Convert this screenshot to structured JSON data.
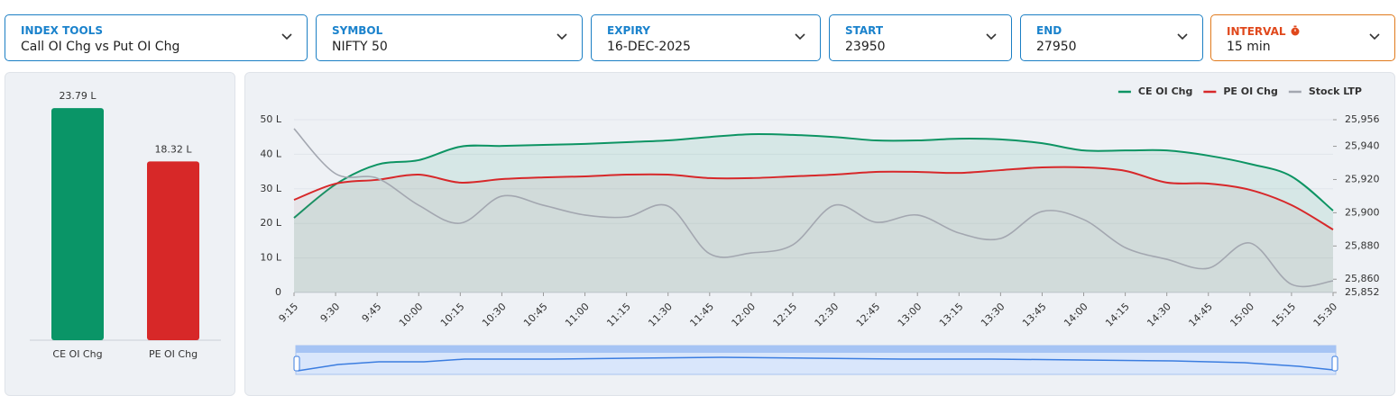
{
  "filters": [
    {
      "label": "INDEX TOOLS",
      "value": "Call OI Chg vs Put OI Chg"
    },
    {
      "label": "SYMBOL",
      "value": "NIFTY 50"
    },
    {
      "label": "EXPIRY",
      "value": "16-DEC-2025"
    },
    {
      "label": "START",
      "value": "23950"
    },
    {
      "label": "END",
      "value": "27950"
    },
    {
      "label": "INTERVAL",
      "value": "15 min"
    }
  ],
  "chart_data": [
    {
      "type": "bar",
      "categories": [
        "CE OI Chg",
        "PE OI Chg"
      ],
      "values": [
        23.79,
        18.32
      ],
      "value_labels": [
        "23.79 L",
        "18.32 L"
      ],
      "colors": [
        "#0a9567",
        "#d72828"
      ],
      "ylim": [
        0,
        25
      ]
    },
    {
      "type": "line",
      "categories": [
        "9:15",
        "9:30",
        "9:45",
        "10:00",
        "10:15",
        "10:30",
        "10:45",
        "11:00",
        "11:15",
        "11:30",
        "11:45",
        "12:00",
        "12:15",
        "12:30",
        "12:45",
        "13:00",
        "13:15",
        "13:30",
        "13:45",
        "14:00",
        "14:15",
        "14:30",
        "14:45",
        "15:00",
        "15:15",
        "15:30"
      ],
      "series": [
        {
          "name": "CE OI Chg",
          "color": "#0d9463",
          "values": [
            21.6,
            31.3,
            37,
            38.3,
            42.2,
            42.4,
            42.7,
            43,
            43.5,
            44,
            45,
            45.8,
            45.6,
            45,
            44,
            44,
            44.5,
            44.3,
            43.2,
            41.1,
            41.1,
            41.1,
            39.6,
            37.2,
            33.6,
            23.7
          ]
        },
        {
          "name": "PE OI Chg",
          "color": "#d7282a",
          "values": [
            26.8,
            31.5,
            32.6,
            34.1,
            31.8,
            32.8,
            33.3,
            33.6,
            34.1,
            34.1,
            33.1,
            33.1,
            33.6,
            34.1,
            34.9,
            34.9,
            34.6,
            35.4,
            36.2,
            36.2,
            35.2,
            31.8,
            31.5,
            29.7,
            25.3,
            18.2
          ]
        },
        {
          "name": "Stock LTP",
          "color": "#a3a7b0",
          "axis": "y2",
          "values": [
            25950.6,
            25923.5,
            25920.8,
            25904.5,
            25893.7,
            25910,
            25904.5,
            25898.6,
            25897.5,
            25904,
            25875.3,
            25875.8,
            25880.7,
            25904.5,
            25894.3,
            25898.6,
            25887.8,
            25884.5,
            25900.8,
            25895.9,
            25879,
            25872,
            25866.6,
            25881.8,
            25856.9,
            25859
          ]
        }
      ],
      "ylim": [
        0,
        50
      ],
      "yticks": [
        0,
        {
          "value": 10,
          "label": "10 L"
        },
        {
          "value": 20,
          "label": "20 L"
        },
        {
          "value": 30,
          "label": "30 L"
        },
        {
          "value": 40,
          "label": "40 L"
        },
        {
          "value": 50,
          "label": "50 L"
        }
      ],
      "y2lim": [
        25852,
        25956
      ],
      "y2ticks": [
        {
          "value": 25852,
          "label": "25,852"
        },
        {
          "value": 25860,
          "label": "25,860"
        },
        {
          "value": 25880,
          "label": "25,880"
        },
        {
          "value": 25900,
          "label": "25,900"
        },
        {
          "value": 25920,
          "label": "25,920"
        },
        {
          "value": 25940,
          "label": "25,940"
        },
        {
          "value": 25956,
          "label": "25,956"
        }
      ],
      "legend": "top-right"
    }
  ]
}
